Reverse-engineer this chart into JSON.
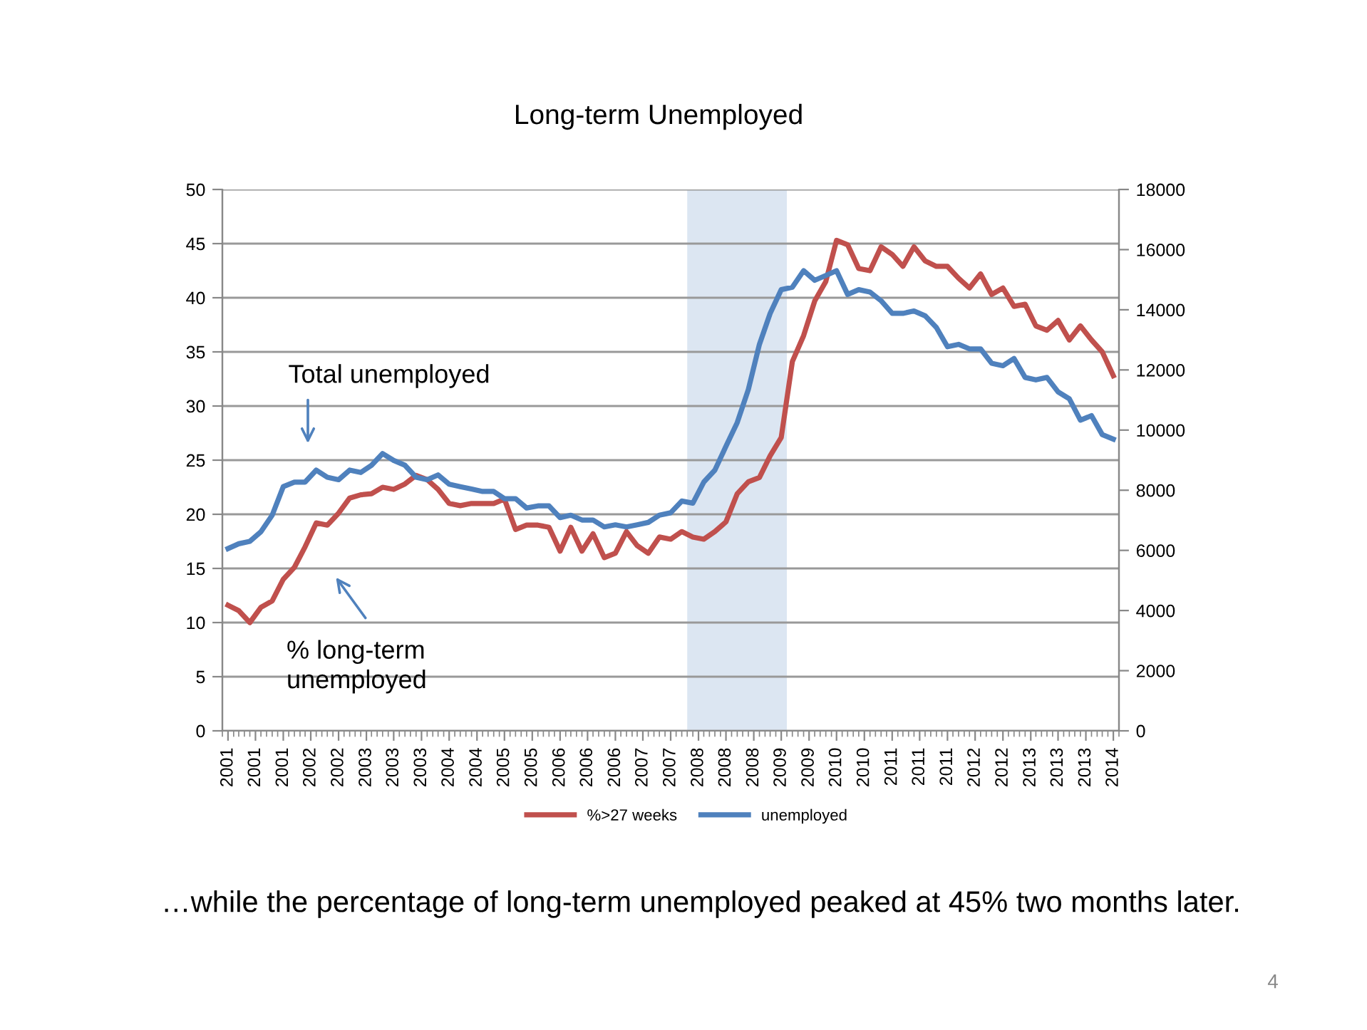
{
  "chart_data": {
    "type": "line",
    "title": "Long-term Unemployed",
    "x": [
      "2001-01",
      "2001-03",
      "2001-05",
      "2001-07",
      "2001-09",
      "2001-11",
      "2002-01",
      "2002-03",
      "2002-05",
      "2002-07",
      "2002-09",
      "2002-11",
      "2003-01",
      "2003-03",
      "2003-05",
      "2003-07",
      "2003-09",
      "2003-11",
      "2004-01",
      "2004-03",
      "2004-05",
      "2004-07",
      "2004-09",
      "2004-11",
      "2005-01",
      "2005-03",
      "2005-05",
      "2005-07",
      "2005-09",
      "2005-11",
      "2006-01",
      "2006-03",
      "2006-05",
      "2006-07",
      "2006-09",
      "2006-11",
      "2007-01",
      "2007-03",
      "2007-05",
      "2007-07",
      "2007-09",
      "2007-11",
      "2008-01",
      "2008-03",
      "2008-05",
      "2008-07",
      "2008-09",
      "2008-11",
      "2009-01",
      "2009-03",
      "2009-05",
      "2009-07",
      "2009-09",
      "2009-11",
      "2010-01",
      "2010-03",
      "2010-05",
      "2010-07",
      "2010-09",
      "2010-11",
      "2011-01",
      "2011-03",
      "2011-05",
      "2011-07",
      "2011-09",
      "2011-11",
      "2012-01",
      "2012-03",
      "2012-05",
      "2012-07",
      "2012-09",
      "2012-11",
      "2013-01",
      "2013-03",
      "2013-05",
      "2013-07",
      "2013-09",
      "2013-11",
      "2014-01",
      "2014-03",
      "2014-05"
    ],
    "series": [
      {
        "name": "%>27 weeks",
        "color": "#c0504d",
        "values": [
          11.6,
          11.1,
          10.0,
          11.4,
          12.0,
          14.0,
          15.1,
          17.0,
          19.2,
          19.0,
          20.1,
          21.5,
          21.8,
          21.9,
          22.5,
          22.3,
          22.8,
          23.6,
          23.2,
          22.3,
          21.0,
          20.8,
          21.0,
          21.0,
          21.0,
          21.4,
          18.6,
          19.0,
          19.0,
          18.8,
          16.6,
          18.8,
          16.6,
          18.2,
          16.0,
          16.4,
          18.4,
          17.1,
          16.4,
          17.9,
          17.7,
          18.4,
          17.9,
          17.7,
          18.4,
          19.3,
          21.9,
          23.0,
          23.4,
          25.4,
          27.1,
          34.1,
          36.5,
          39.7,
          41.5,
          45.3,
          44.9,
          42.7,
          42.5,
          44.7,
          44.0,
          42.9,
          44.7,
          43.4,
          42.9,
          42.9,
          41.8,
          40.9,
          42.2,
          40.3,
          40.9,
          39.2,
          39.4,
          37.4,
          37.0,
          37.9,
          36.1,
          37.4,
          36.1,
          35.0,
          32.8
        ]
      },
      {
        "name": "unemployed",
        "color": "#4f81bd",
        "axis": "y2",
        "values": [
          6060,
          6220,
          6300,
          6620,
          7170,
          8120,
          8270,
          8270,
          8670,
          8430,
          8350,
          8670,
          8590,
          8830,
          9220,
          8990,
          8830,
          8430,
          8350,
          8510,
          8200,
          8120,
          8040,
          7960,
          7960,
          7720,
          7720,
          7410,
          7480,
          7480,
          7090,
          7170,
          7010,
          7010,
          6780,
          6850,
          6780,
          6850,
          6930,
          7170,
          7250,
          7640,
          7570,
          8270,
          8670,
          9460,
          10250,
          11350,
          12850,
          13880,
          14670,
          14750,
          15300,
          14980,
          15140,
          15300,
          14510,
          14670,
          14590,
          14300,
          13880,
          13880,
          13960,
          13800,
          13410,
          12770,
          12850,
          12700,
          12700,
          12220,
          12140,
          12380,
          11750,
          11670,
          11750,
          11270,
          11040,
          10330,
          10480,
          9850,
          9700
        ]
      }
    ],
    "xlim": [
      "2000-12",
      "2014-06"
    ],
    "xticks": [
      {
        "value": "2001-01",
        "label": "2001"
      },
      {
        "value": "2001-06",
        "label": "2001"
      },
      {
        "value": "2001-11",
        "label": "2001"
      },
      {
        "value": "2002-04",
        "label": "2002"
      },
      {
        "value": "2002-09",
        "label": "2002"
      },
      {
        "value": "2003-02",
        "label": "2003"
      },
      {
        "value": "2003-07",
        "label": "2003"
      },
      {
        "value": "2003-12",
        "label": "2003"
      },
      {
        "value": "2004-05",
        "label": "2004"
      },
      {
        "value": "2004-10",
        "label": "2004"
      },
      {
        "value": "2005-03",
        "label": "2005"
      },
      {
        "value": "2005-08",
        "label": "2005"
      },
      {
        "value": "2006-01",
        "label": "2006"
      },
      {
        "value": "2006-06",
        "label": "2006"
      },
      {
        "value": "2006-11",
        "label": "2006"
      },
      {
        "value": "2007-04",
        "label": "2007"
      },
      {
        "value": "2007-09",
        "label": "2007"
      },
      {
        "value": "2008-02",
        "label": "2008"
      },
      {
        "value": "2008-07",
        "label": "2008"
      },
      {
        "value": "2008-12",
        "label": "2008"
      },
      {
        "value": "2009-05",
        "label": "2009"
      },
      {
        "value": "2009-10",
        "label": "2009"
      },
      {
        "value": "2010-03",
        "label": "2010"
      },
      {
        "value": "2010-08",
        "label": "2010"
      },
      {
        "value": "2011-01",
        "label": "2011"
      },
      {
        "value": "2011-06",
        "label": "2011"
      },
      {
        "value": "2011-11",
        "label": "2011"
      },
      {
        "value": "2012-04",
        "label": "2012"
      },
      {
        "value": "2012-09",
        "label": "2012"
      },
      {
        "value": "2013-02",
        "label": "2013"
      },
      {
        "value": "2013-07",
        "label": "2013"
      },
      {
        "value": "2013-12",
        "label": "2013"
      },
      {
        "value": "2014-05",
        "label": "2014"
      }
    ],
    "ylim": [
      0,
      50
    ],
    "yticks": [
      0,
      5,
      10,
      15,
      20,
      25,
      30,
      35,
      40,
      45,
      50
    ],
    "y2lim": [
      0,
      18000
    ],
    "y2ticks": [
      0,
      2000,
      4000,
      6000,
      8000,
      10000,
      12000,
      14000,
      16000,
      18000
    ],
    "bands": [
      {
        "axis": "x",
        "from": "2007-12",
        "to": "2009-06",
        "color": "#dce6f2"
      }
    ],
    "annotations": [
      "Total unemployed",
      "% long-term\nunemployed",
      "…while the percentage of long-term unemployed peaked at 45% two months later.",
      "4"
    ],
    "grid": "y",
    "legend": "bottom",
    "marker": "none",
    "line_style": "solid"
  }
}
